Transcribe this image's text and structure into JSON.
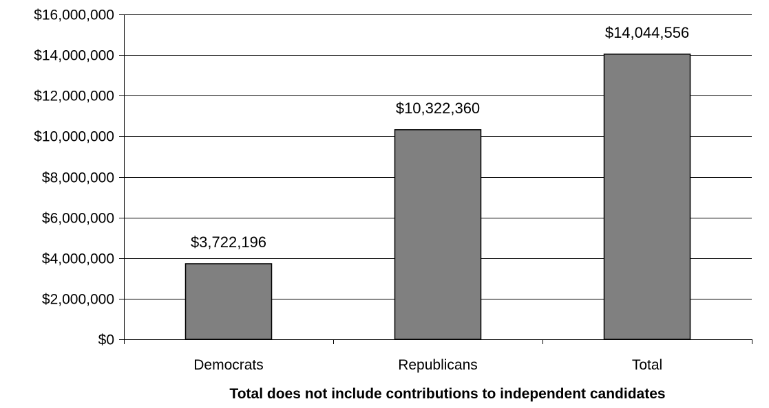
{
  "chart_data": {
    "type": "bar",
    "categories": [
      "Democrats",
      "Republicans",
      "Total"
    ],
    "values": [
      3722196,
      10322360,
      14044556
    ],
    "data_labels": [
      "$3,722,196",
      "$10,322,360",
      "$14,044,556"
    ],
    "title": "",
    "xlabel": "Total does not include contributions to independent candidates",
    "ylabel": "",
    "ylim": [
      0,
      16000000
    ],
    "yticks": [
      0,
      2000000,
      4000000,
      6000000,
      8000000,
      10000000,
      12000000,
      14000000,
      16000000
    ],
    "ytick_labels": [
      "$0",
      "$2,000,000",
      "$4,000,000",
      "$6,000,000",
      "$8,000,000",
      "$10,000,000",
      "$12,000,000",
      "$14,000,000",
      "$16,000,000"
    ],
    "grid": true,
    "legend": "none",
    "colors": {
      "bar_fill": "#808080",
      "bar_stroke": "#000000",
      "grid": "#000000",
      "axis": "#000000",
      "text": "#000000"
    }
  }
}
